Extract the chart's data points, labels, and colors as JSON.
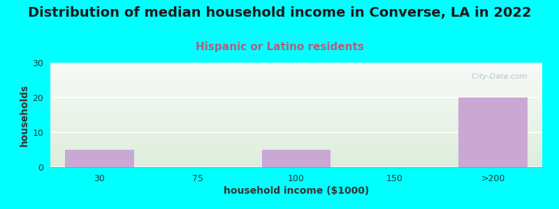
{
  "title": "Distribution of median household income in Converse, LA in 2022",
  "subtitle": "Hispanic or Latino residents",
  "xlabel": "household income ($1000)",
  "ylabel": "households",
  "categories": [
    "30",
    "75",
    "100",
    "150",
    ">200"
  ],
  "values": [
    5,
    0,
    5,
    0,
    20
  ],
  "bar_color": "#c9a8d4",
  "bar_alpha": 1.0,
  "ylim": [
    0,
    30
  ],
  "yticks": [
    0,
    10,
    20,
    30
  ],
  "background_color": "#00ffff",
  "plot_bg_top": "#f8faf8",
  "plot_bg_bottom": "#ddeedd",
  "title_fontsize": 14,
  "subtitle_fontsize": 11,
  "subtitle_color": "#b06080",
  "axis_label_fontsize": 10,
  "tick_fontsize": 9,
  "watermark": "  City-Data.com",
  "watermark_color": "#aabbc0"
}
